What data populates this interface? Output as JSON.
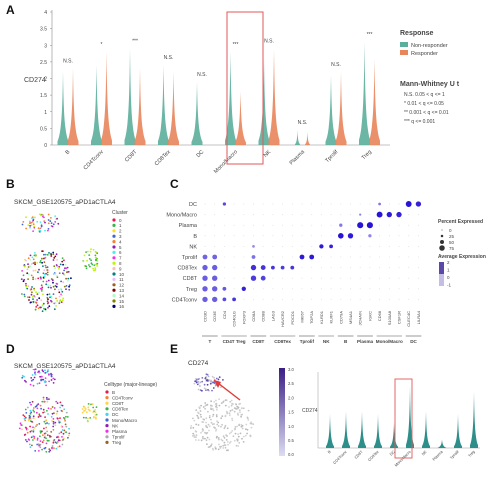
{
  "panels": {
    "A": {
      "letter": "A"
    },
    "B": {
      "letter": "B",
      "title": "SKCM_GSE120575_aPD1aCTLA4",
      "legend_title": "Cluster",
      "clusters": [
        "0",
        "1",
        "2",
        "3",
        "4",
        "5",
        "6",
        "7",
        "8",
        "9",
        "10",
        "11",
        "12",
        "13",
        "14",
        "15",
        "16"
      ]
    },
    "C": {
      "letter": "C"
    },
    "D": {
      "letter": "D",
      "title": "SKCM_GSE120575_aPD1aCTLA4",
      "legend_title": "Celltype (major-lineage)",
      "celltypes": [
        "B",
        "CD4Tconv",
        "CD8T",
        "CD8Tex",
        "DC",
        "Mono/Macro",
        "NK",
        "Plasma",
        "Tprolif",
        "Treg"
      ]
    },
    "E": {
      "letter": "E",
      "title": "CD274",
      "ylabel": "CD274",
      "colorbar_ticks": [
        "3.0",
        "2.5",
        "2.0",
        "1.5",
        "1.0",
        "0.5",
        "0.0"
      ]
    }
  },
  "chart_data": [
    {
      "type": "violin",
      "panel": "A",
      "ylabel": "CD274",
      "ylim": [
        0,
        4
      ],
      "yticks": [
        "0",
        "0.5",
        "1",
        "1.5",
        "2",
        "2.5",
        "3",
        "3.5",
        "4"
      ],
      "categories": [
        "B",
        "CD4Tconv",
        "CD8T",
        "CD8Tex",
        "DC",
        "Mono/Macro",
        "NK",
        "Plasma",
        "Tprolif",
        "Treg"
      ],
      "series": [
        {
          "name": "Non-responder",
          "color": "#5BAE9B",
          "max": [
            2.2,
            2.4,
            2.9,
            2.4,
            1.9,
            2.8,
            2.6,
            0.45,
            2.1,
            3.1
          ]
        },
        {
          "name": "Responder",
          "color": "#E8855B",
          "max": [
            2.3,
            2.8,
            2.3,
            2.2,
            0.0,
            1.6,
            2.9,
            0.4,
            2.2,
            2.6
          ]
        }
      ],
      "significance": [
        "N.S.",
        "*",
        "***",
        "N.S.",
        "N.S.",
        "***",
        "N.S.",
        "N.S.",
        "N.S.",
        "***"
      ],
      "highlighted": "Mono/Macro",
      "legend_title": "Response",
      "legend": [
        "Non-responder",
        "Responder"
      ],
      "test_title": "Mann-Whitney U t",
      "test_legend": [
        "N.S.  0.05 < q <= 1",
        "*  0.01 < q <= 0.05",
        "**  0.001 < q <= 0.01",
        "***  q <= 0.001"
      ]
    },
    {
      "type": "dotplot",
      "panel": "C",
      "rows": [
        "DC",
        "Mono/Macro",
        "Plasma",
        "B",
        "NK",
        "Tprolif",
        "CD8Tex",
        "CD8T",
        "Treg",
        "CD4Tconv"
      ],
      "genes": [
        "CD3D",
        "CD3E",
        "CD4",
        "CD40LG",
        "FOXP3",
        "CD8A",
        "CD8B",
        "LAG3",
        "HAVCR2",
        "PDCD1",
        "MKI67",
        "TOP2A",
        "KLRD1",
        "KLRF1",
        "CD79A",
        "MS4A1",
        "JCHAIN",
        "IGKC",
        "CD68",
        "S100A8",
        "CSF1R",
        "CLEC4C",
        "LILRA4"
      ],
      "gene_groups": [
        {
          "label": "T",
          "from": 0,
          "to": 1
        },
        {
          "label": "CD4T Treg",
          "from": 2,
          "to": 4
        },
        {
          "label": "CD8T",
          "from": 5,
          "to": 6
        },
        {
          "label": "CD8Tex",
          "from": 7,
          "to": 9
        },
        {
          "label": "Tprolif",
          "from": 10,
          "to": 11
        },
        {
          "label": "NK",
          "from": 12,
          "to": 13
        },
        {
          "label": "B",
          "from": 14,
          "to": 15
        },
        {
          "label": "Plasma",
          "from": 16,
          "to": 17
        },
        {
          "label": "Mono/Macro",
          "from": 18,
          "to": 20
        },
        {
          "label": "DC",
          "from": 21,
          "to": 22
        }
      ],
      "size_legend_title": "Percent Expressed",
      "size_legend": [
        "0",
        "25",
        "50",
        "75"
      ],
      "color_legend_title": "Average Expression",
      "color_legend": [
        "2",
        "1",
        "0",
        "-1"
      ],
      "points": [
        [
          0,
          21,
          0.9,
          2.0
        ],
        [
          0,
          22,
          0.8,
          1.8
        ],
        [
          0,
          18,
          0.3,
          0.5
        ],
        [
          0,
          2,
          0.4,
          1.2
        ],
        [
          1,
          18,
          0.9,
          2.0
        ],
        [
          1,
          19,
          0.8,
          1.9
        ],
        [
          1,
          20,
          0.8,
          1.8
        ],
        [
          1,
          16,
          0.2,
          0.3
        ],
        [
          2,
          16,
          0.95,
          2.0
        ],
        [
          2,
          17,
          0.95,
          2.0
        ],
        [
          2,
          14,
          0.4,
          0.5
        ],
        [
          3,
          14,
          0.85,
          2.0
        ],
        [
          3,
          15,
          0.8,
          1.9
        ],
        [
          3,
          17,
          0.4,
          0.3
        ],
        [
          4,
          12,
          0.6,
          1.9
        ],
        [
          4,
          13,
          0.5,
          1.8
        ],
        [
          4,
          5,
          0.3,
          0.2
        ],
        [
          5,
          10,
          0.7,
          1.9
        ],
        [
          5,
          11,
          0.7,
          1.9
        ],
        [
          5,
          0,
          0.7,
          0.8
        ],
        [
          5,
          1,
          0.7,
          0.8
        ],
        [
          5,
          5,
          0.5,
          0.6
        ],
        [
          6,
          0,
          0.8,
          0.9
        ],
        [
          6,
          1,
          0.8,
          0.9
        ],
        [
          6,
          5,
          0.8,
          1.6
        ],
        [
          6,
          6,
          0.7,
          1.5
        ],
        [
          6,
          7,
          0.5,
          1.5
        ],
        [
          6,
          8,
          0.5,
          1.4
        ],
        [
          6,
          9,
          0.5,
          1.5
        ],
        [
          7,
          0,
          0.8,
          0.9
        ],
        [
          7,
          1,
          0.8,
          0.9
        ],
        [
          7,
          5,
          0.8,
          1.4
        ],
        [
          7,
          6,
          0.7,
          1.3
        ],
        [
          8,
          0,
          0.8,
          0.9
        ],
        [
          8,
          1,
          0.8,
          0.9
        ],
        [
          8,
          2,
          0.5,
          1.0
        ],
        [
          8,
          4,
          0.6,
          1.8
        ],
        [
          9,
          0,
          0.8,
          0.9
        ],
        [
          9,
          1,
          0.8,
          0.9
        ],
        [
          9,
          2,
          0.5,
          1.2
        ],
        [
          9,
          3,
          0.5,
          1.5
        ]
      ]
    },
    {
      "type": "violin",
      "panel": "E",
      "ylabel": "CD274",
      "categories": [
        "B",
        "CD4Tconv",
        "CD8T",
        "CD8Tex",
        "DC",
        "Mono/Macro",
        "NK",
        "Plasma",
        "Tprolif",
        "Treg"
      ],
      "max": [
        1.2,
        1.3,
        1.3,
        1.2,
        0.9,
        2.2,
        1.3,
        0.3,
        1.2,
        2.0
      ],
      "highlighted": "Mono/Macro",
      "color": "#2E8F8A"
    }
  ]
}
